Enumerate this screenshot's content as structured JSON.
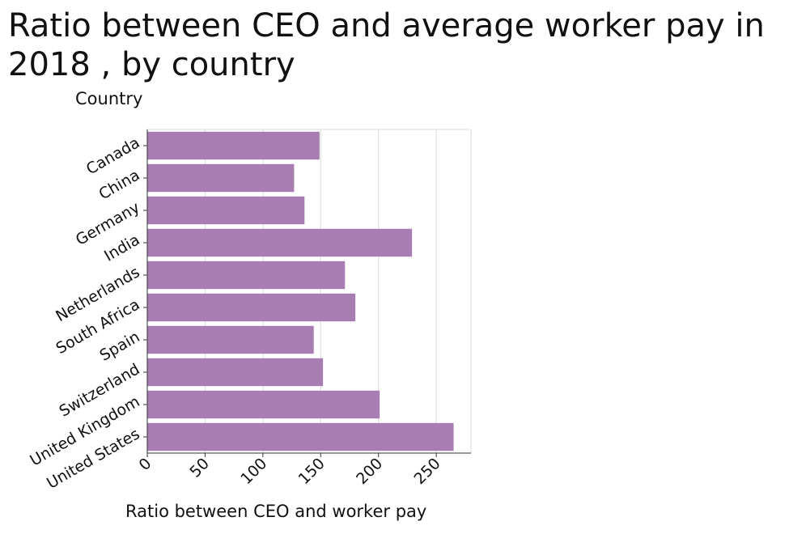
{
  "chart_data": {
    "type": "bar",
    "orientation": "horizontal",
    "title": "Ratio between CEO and average worker pay in 2018 , by country",
    "xlabel": "Ratio between CEO and worker pay",
    "ylabel": "Country",
    "categories": [
      "Canada",
      "China",
      "Germany",
      "India",
      "Netherlands",
      "South Africa",
      "Spain",
      "Switzerland",
      "United Kingdom",
      "United States"
    ],
    "values": [
      149,
      127,
      136,
      229,
      171,
      180,
      144,
      152,
      201,
      265
    ],
    "xlim": [
      0,
      280
    ],
    "xticks": [
      0,
      50,
      100,
      150,
      200,
      250
    ],
    "grid": true,
    "bar_color": "#a87db1"
  }
}
